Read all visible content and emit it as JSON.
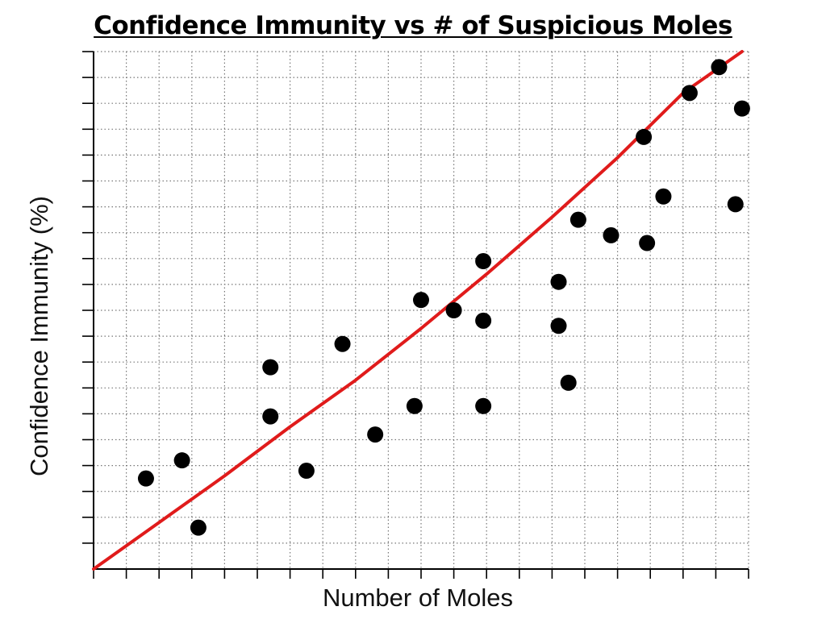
{
  "chart_data": {
    "type": "scatter",
    "title": "Confidence Immunity vs # of Suspicious Moles",
    "xlabel": "Number of Moles",
    "ylabel": "Confidence Immunity (%)",
    "xlim": [
      0,
      20
    ],
    "ylim": [
      0,
      20
    ],
    "grid": true,
    "grid_style": "dotted",
    "tick_labels": false,
    "points": [
      {
        "x": 1.6,
        "y": 3.5
      },
      {
        "x": 2.7,
        "y": 4.2
      },
      {
        "x": 3.2,
        "y": 1.6
      },
      {
        "x": 5.4,
        "y": 7.8
      },
      {
        "x": 5.4,
        "y": 5.9
      },
      {
        "x": 6.5,
        "y": 3.8
      },
      {
        "x": 7.6,
        "y": 8.7
      },
      {
        "x": 8.6,
        "y": 5.2
      },
      {
        "x": 9.8,
        "y": 6.3
      },
      {
        "x": 10.0,
        "y": 10.4
      },
      {
        "x": 11.0,
        "y": 10.0
      },
      {
        "x": 11.9,
        "y": 11.9
      },
      {
        "x": 11.9,
        "y": 9.6
      },
      {
        "x": 11.9,
        "y": 6.3
      },
      {
        "x": 14.2,
        "y": 11.1
      },
      {
        "x": 14.2,
        "y": 9.4
      },
      {
        "x": 14.5,
        "y": 7.2
      },
      {
        "x": 14.8,
        "y": 13.5
      },
      {
        "x": 15.8,
        "y": 12.9
      },
      {
        "x": 16.8,
        "y": 16.7
      },
      {
        "x": 16.9,
        "y": 12.6
      },
      {
        "x": 17.4,
        "y": 14.4
      },
      {
        "x": 18.2,
        "y": 18.4
      },
      {
        "x": 19.1,
        "y": 19.4
      },
      {
        "x": 19.6,
        "y": 14.1
      },
      {
        "x": 19.8,
        "y": 17.8
      }
    ],
    "trendline": {
      "type": "exponential",
      "color": "#e01b1b",
      "x": [
        0,
        2,
        4,
        6,
        8,
        10,
        12,
        14,
        16,
        18,
        19.8
      ],
      "y": [
        0,
        1.8,
        3.6,
        5.5,
        7.3,
        9.3,
        11.4,
        13.6,
        15.9,
        18.4,
        20.0
      ]
    },
    "point_color": "#000000",
    "axis_color": "#000000",
    "grid_color": "#777777"
  }
}
